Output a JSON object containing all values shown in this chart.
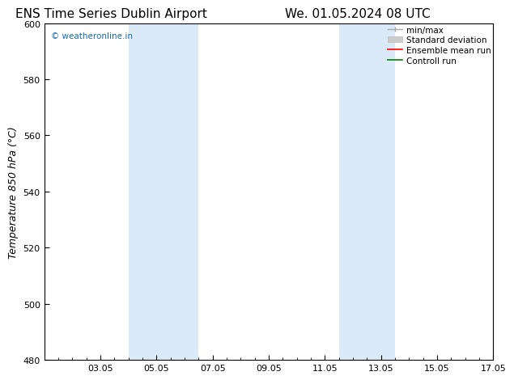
{
  "title_left": "ENS Time Series Dublin Airport",
  "title_right": "We. 01.05.2024 08 UTC",
  "ylabel": "Temperature 850 hPa (°C)",
  "ylim": [
    480,
    600
  ],
  "yticks": [
    480,
    500,
    520,
    540,
    560,
    580,
    600
  ],
  "xtick_labels": [
    "03.05",
    "05.05",
    "07.05",
    "09.05",
    "11.05",
    "13.05",
    "15.05",
    "17.05"
  ],
  "xtick_positions": [
    2,
    4,
    6,
    8,
    10,
    12,
    14,
    16
  ],
  "xlim": [
    0,
    16
  ],
  "shaded_bands": [
    {
      "x_start": 3.0,
      "x_end": 5.5
    },
    {
      "x_start": 10.5,
      "x_end": 12.5
    }
  ],
  "shaded_color": "#daeaf8",
  "watermark_text": "© weatheronline.in",
  "watermark_color": "#1a6bb5",
  "bg_color": "#ffffff",
  "title_fontsize": 11,
  "label_fontsize": 9,
  "tick_fontsize": 8,
  "legend_fontsize": 7.5
}
